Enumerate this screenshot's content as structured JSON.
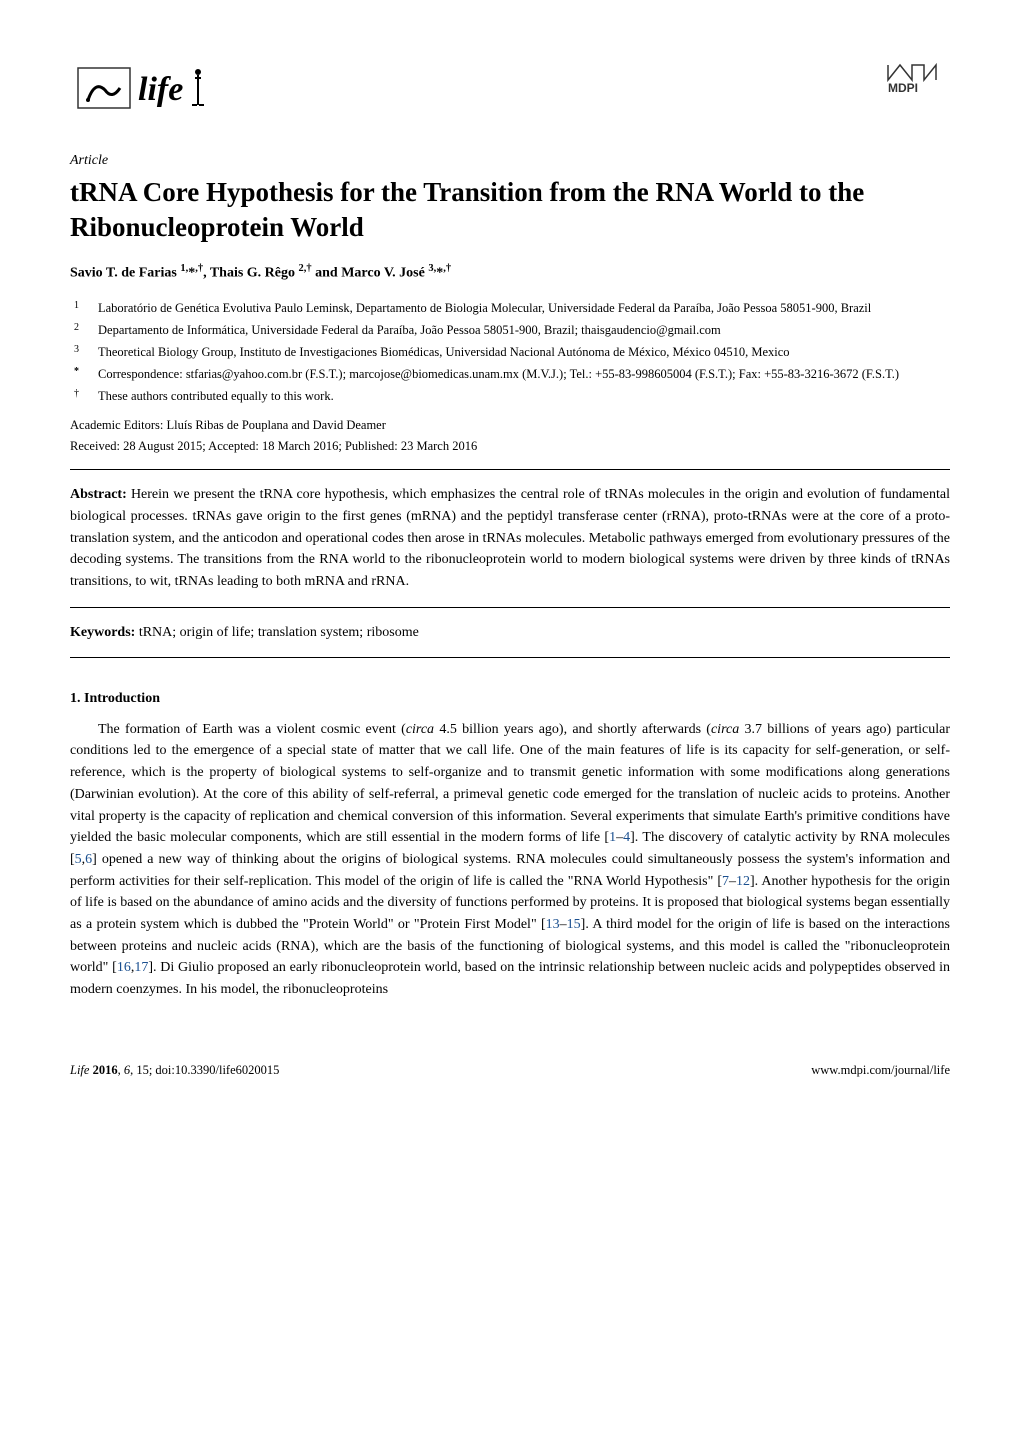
{
  "journal": {
    "name": "life",
    "publisher": "MDPI"
  },
  "article": {
    "type": "Article",
    "title": "tRNA Core Hypothesis for the Transition from the RNA World to the Ribonucleoprotein World",
    "authors_html": "Savio T. de Farias <sup>1,</sup>*<sup>,†</sup>, Thais G. Rêgo <sup>2,†</sup> and Marco V. José <sup>3,</sup>*<sup>,†</sup>"
  },
  "affiliations": [
    {
      "num": "1",
      "text": "Laboratório de Genética Evolutiva Paulo Leminsk, Departamento de Biologia Molecular, Universidade Federal da Paraíba, João Pessoa 58051-900, Brazil"
    },
    {
      "num": "2",
      "text": "Departamento de Informática, Universidade Federal da Paraíba, João Pessoa 58051-900, Brazil; thaisgaudencio@gmail.com"
    },
    {
      "num": "3",
      "text": "Theoretical Biology Group, Instituto de Investigaciones Biomédicas, Universidad Nacional Autónoma de México, México 04510, Mexico"
    },
    {
      "num": "*",
      "text": "Correspondence: stfarias@yahoo.com.br (F.S.T.); marcojose@biomedicas.unam.mx (M.V.J.); Tel.: +55-83-998605004 (F.S.T.); Fax: +55-83-3216-3672 (F.S.T.)"
    },
    {
      "num": "†",
      "text": "These authors contributed equally to this work."
    }
  ],
  "editors": "Academic Editors: Lluís Ribas de Pouplana and David Deamer",
  "dates": "Received: 28 August 2015; Accepted: 18 March 2016; Published: 23 March 2016",
  "abstract": {
    "label": "Abstract:",
    "text": " Herein we present the tRNA core hypothesis, which emphasizes the central role of tRNAs molecules in the origin and evolution of fundamental biological processes. tRNAs gave origin to the first genes (mRNA) and the peptidyl transferase center (rRNA), proto-tRNAs were at the core of a proto-translation system, and the anticodon and operational codes then arose in tRNAs molecules. Metabolic pathways emerged from evolutionary pressures of the decoding systems. The transitions from the RNA world to the ribonucleoprotein world to modern biological systems were driven by three kinds of tRNAs transitions, to wit, tRNAs leading to both mRNA and rRNA."
  },
  "keywords": {
    "label": "Keywords:",
    "text": " tRNA; origin of life; translation system; ribosome"
  },
  "section1": {
    "heading": "1.  Introduction",
    "body_html": "The formation of Earth was a violent cosmic event (<i>circa</i> 4.5 billion years ago), and shortly afterwards (<i>circa</i> 3.7 billions of years ago) particular conditions led to the emergence of a special state of matter that we call life. One of the main features of life is its capacity for self-generation, or self-reference, which is the property of biological systems to self-organize and to transmit genetic information with some modifications along generations (Darwinian evolution). At the core of this ability of self-referral, a primeval genetic code emerged for the translation of nucleic acids to proteins. Another vital property is the capacity of replication and chemical conversion of this information. Several experiments that simulate Earth's primitive conditions have yielded the basic molecular components, which are still essential in the modern forms of life [<span class=\"ref-link\">1</span>–<span class=\"ref-link\">4</span>]. The discovery of catalytic activity by RNA molecules [<span class=\"ref-link\">5</span>,<span class=\"ref-link\">6</span>] opened a new way of thinking about the origins of biological systems. RNA molecules could simultaneously possess the system's information and perform activities for their self-replication. This model of the origin of life is called the \"RNA World Hypothesis\" [<span class=\"ref-link\">7</span>–<span class=\"ref-link\">12</span>]. Another hypothesis for the origin of life is based on the abundance of amino acids and the diversity of functions performed by proteins. It is proposed that biological systems began essentially as a protein system which is dubbed the \"Protein World\" or \"Protein First Model\" [<span class=\"ref-link\">13</span>–<span class=\"ref-link\">15</span>]. A third model for the origin of life is based on the interactions between proteins and nucleic acids (RNA), which are the basis of the functioning of biological systems, and this model is called the \"ribonucleoprotein world\" [<span class=\"ref-link\">16</span>,<span class=\"ref-link\">17</span>]. Di Giulio proposed an early ribonucleoprotein world, based on the intrinsic relationship between nucleic acids and polypeptides observed in modern coenzymes. In his model, the ribonucleoproteins"
  },
  "footer": {
    "left_html": "<i>Life</i> <b>2016</b>, <i>6</i>, 15; doi:10.3390/life6020015",
    "right": "www.mdpi.com/journal/life"
  },
  "colors": {
    "text": "#000000",
    "background": "#ffffff",
    "ref_link": "#1a4f8f",
    "logo_border": "#333333"
  }
}
